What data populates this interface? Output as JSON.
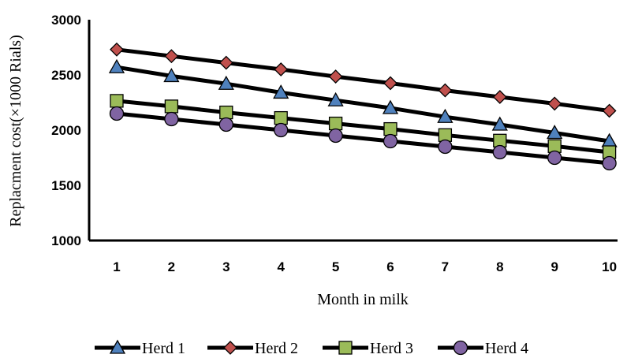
{
  "chart_data": {
    "type": "line",
    "xlabel": "Month in milk",
    "ylabel": "Replacment cost(×1000 Rials)",
    "ylim": [
      1000,
      3000
    ],
    "yticks": [
      "1000",
      "1500",
      "2000",
      "2500",
      "3000"
    ],
    "categories": [
      "1",
      "2",
      "3",
      "4",
      "5",
      "6",
      "7",
      "8",
      "9",
      "10"
    ],
    "grid": false,
    "legend_position": "bottom",
    "series": [
      {
        "name": "Herd 1",
        "marker": "triangle",
        "color": "#4f81bd",
        "values": [
          2570,
          2490,
          2420,
          2340,
          2270,
          2200,
          2120,
          2050,
          1975,
          1900
        ]
      },
      {
        "name": "Herd 2",
        "marker": "diamond",
        "color": "#c0504d",
        "values": [
          2730,
          2670,
          2610,
          2550,
          2485,
          2425,
          2360,
          2300,
          2240,
          2175
        ]
      },
      {
        "name": "Herd 3",
        "marker": "square",
        "color": "#9bbb59",
        "values": [
          2265,
          2215,
          2160,
          2110,
          2060,
          2010,
          1955,
          1905,
          1855,
          1800
        ]
      },
      {
        "name": "Herd 4",
        "marker": "circle",
        "color": "#8064a2",
        "values": [
          2150,
          2100,
          2050,
          2000,
          1950,
          1900,
          1850,
          1800,
          1750,
          1700
        ]
      }
    ]
  }
}
